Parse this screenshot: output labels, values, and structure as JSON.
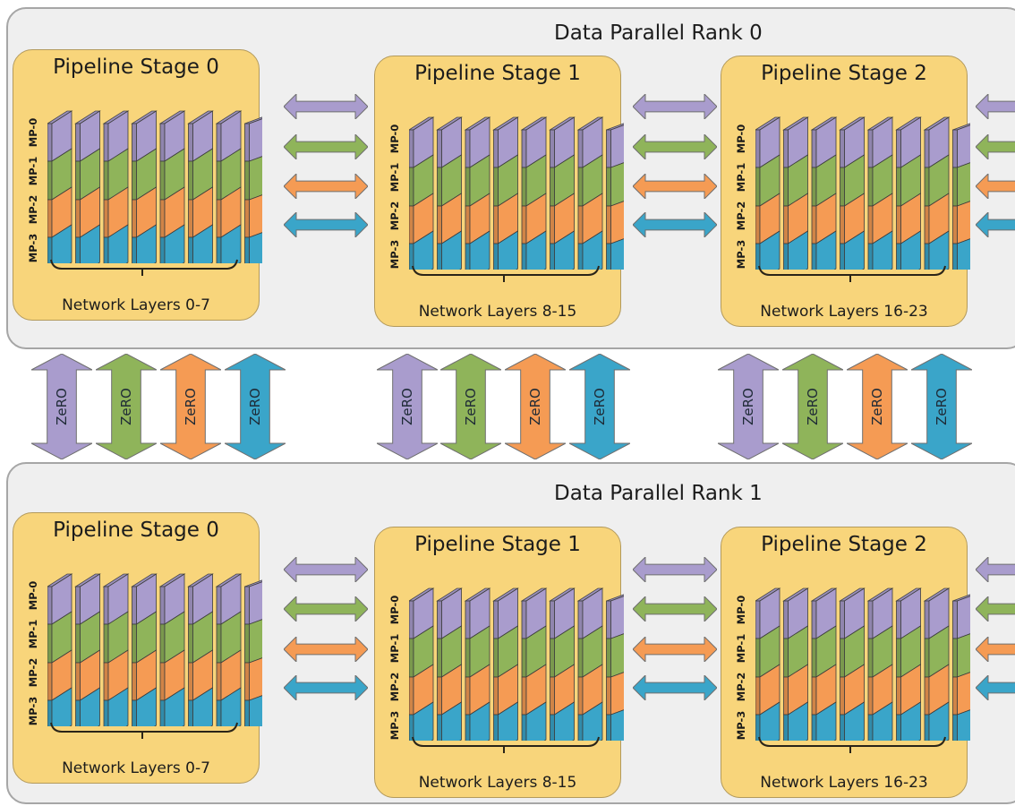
{
  "colors": {
    "mp0": "#a99ccd",
    "mp1": "#8fb45a",
    "mp2": "#f59b54",
    "mp3": "#3aa5c9",
    "stage_fill": "#f8d57b",
    "rank_fill": "#efefef"
  },
  "mp_labels": [
    "MP-0",
    "MP-1",
    "MP-2",
    "MP-3"
  ],
  "ranks": [
    {
      "title": "Data Parallel Rank 0",
      "stages": [
        {
          "title": "Pipeline Stage 0",
          "layers": "Network Layers 0-7"
        },
        {
          "title": "Pipeline Stage 1",
          "layers": "Network Layers 8-15"
        },
        {
          "title": "Pipeline Stage 2",
          "layers": "Network Layers 16-23"
        }
      ]
    },
    {
      "title": "Data Parallel Rank 1",
      "stages": [
        {
          "title": "Pipeline Stage 0",
          "layers": "Network Layers 0-7"
        },
        {
          "title": "Pipeline Stage 1",
          "layers": "Network Layers 8-15"
        },
        {
          "title": "Pipeline Stage 2",
          "layers": "Network Layers 16-23"
        }
      ]
    }
  ],
  "zero_label": "ZeRO",
  "layers_per_stage": 8
}
